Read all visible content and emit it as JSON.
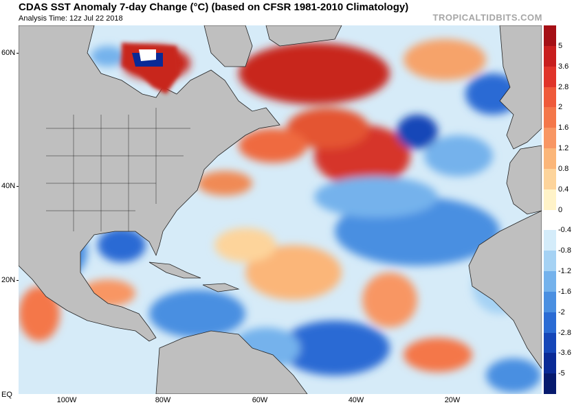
{
  "header": {
    "title": "CDAS SST Anomaly 7-day Change (°C) (based on CFSR 1981-2010 Climatology)",
    "analysis_time": "Analysis Time: 12z Jul 22 2018",
    "brand": "TROPICALTIDBITS.COM"
  },
  "map": {
    "latitude_labels": [
      "60N",
      "40N",
      "20N",
      "EQ"
    ],
    "longitude_labels": [
      "100W",
      "80W",
      "60W",
      "40W",
      "20W"
    ],
    "land_color": "#bfbfbf"
  },
  "colorbar": {
    "labels": [
      "5",
      "3.6",
      "2.8",
      "2",
      "1.6",
      "1.2",
      "0.8",
      "0.4",
      "0",
      "-0.4",
      "-0.8",
      "-1.2",
      "-1.6",
      "-2",
      "-2.8",
      "-3.6",
      "-5"
    ],
    "colors": [
      "#a50f15",
      "#c81e1e",
      "#e0342a",
      "#ef5a3a",
      "#f4774a",
      "#f89663",
      "#fbb679",
      "#fdd49b",
      "#fff3c8",
      "#ffffff",
      "#d4ecfa",
      "#a5d2f4",
      "#74b2ec",
      "#4a8fe1",
      "#2a6bd4",
      "#1546b8",
      "#0a2a96",
      "#061a6e"
    ]
  }
}
